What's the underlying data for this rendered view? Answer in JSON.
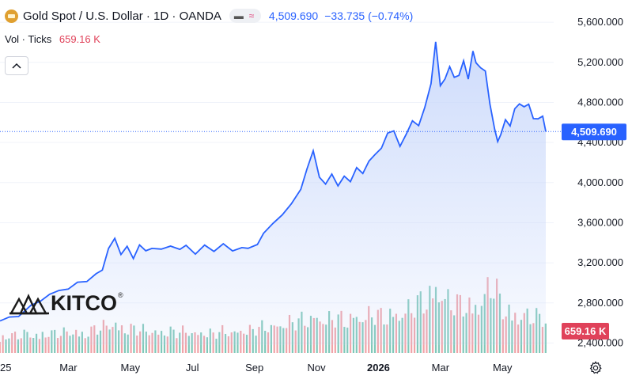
{
  "header": {
    "symbol_icon": "gold-bar-icon",
    "title": "Gold Spot / U.S. Dollar · 1D · OANDA",
    "price": "4,509.690",
    "change": "−33.735 (−0.74%)"
  },
  "volume": {
    "label": "Vol · Ticks",
    "value": "659.16 K"
  },
  "logo": {
    "text": "KITCO",
    "mark": "®"
  },
  "colors": {
    "line": "#2962ff",
    "fill": "#c9d8fb",
    "vol_up": "#7fc8b9",
    "vol_down": "#f0a3a8",
    "accent": "#e0425a"
  },
  "chart_data": {
    "type": "area",
    "price_axis": {
      "ticks": [
        "5,600.000",
        "5,200.000",
        "4,800.000",
        "4,400.000",
        "4,000.000",
        "3,600.000",
        "3,200.000",
        "2,800.000",
        "2,400.000"
      ],
      "tick_values": [
        5600,
        5200,
        4800,
        4400,
        4000,
        3600,
        3200,
        2800,
        2400
      ],
      "range": [
        2380,
        5680
      ]
    },
    "time_axis": {
      "labels": [
        "25",
        "Mar",
        "May",
        "Jul",
        "Sep",
        "Nov",
        "2026",
        "Mar",
        "May"
      ],
      "bold": [
        false,
        false,
        false,
        false,
        false,
        false,
        true,
        false,
        false
      ],
      "label_months": [
        0,
        2,
        4,
        6,
        8,
        10,
        12,
        14,
        16
      ],
      "range_months": [
        0,
        17.6
      ]
    },
    "last_price": 4509.69,
    "last_price_label": "4,509.690",
    "volume_label": "659.16 K",
    "price_series": [
      [
        0,
        2620
      ],
      [
        0.3,
        2650
      ],
      [
        0.6,
        2680
      ],
      [
        1.0,
        2760
      ],
      [
        1.3,
        2830
      ],
      [
        1.6,
        2880
      ],
      [
        1.9,
        2920
      ],
      [
        2.2,
        2950
      ],
      [
        2.5,
        2990
      ],
      [
        2.8,
        3030
      ],
      [
        3.1,
        3080
      ],
      [
        3.3,
        3130
      ],
      [
        3.5,
        3350
      ],
      [
        3.7,
        3430
      ],
      [
        3.9,
        3300
      ],
      [
        4.1,
        3350
      ],
      [
        4.3,
        3250
      ],
      [
        4.5,
        3380
      ],
      [
        4.7,
        3310
      ],
      [
        4.9,
        3360
      ],
      [
        5.2,
        3320
      ],
      [
        5.5,
        3380
      ],
      [
        5.8,
        3330
      ],
      [
        6.0,
        3370
      ],
      [
        6.3,
        3300
      ],
      [
        6.6,
        3360
      ],
      [
        6.9,
        3330
      ],
      [
        7.2,
        3380
      ],
      [
        7.5,
        3320
      ],
      [
        7.8,
        3360
      ],
      [
        8.0,
        3330
      ],
      [
        8.3,
        3400
      ],
      [
        8.5,
        3480
      ],
      [
        8.8,
        3600
      ],
      [
        9.1,
        3680
      ],
      [
        9.4,
        3780
      ],
      [
        9.7,
        3950
      ],
      [
        9.9,
        4120
      ],
      [
        10.1,
        4330
      ],
      [
        10.3,
        4050
      ],
      [
        10.5,
        3980
      ],
      [
        10.7,
        4100
      ],
      [
        10.9,
        3950
      ],
      [
        11.1,
        4080
      ],
      [
        11.3,
        4000
      ],
      [
        11.5,
        4150
      ],
      [
        11.7,
        4100
      ],
      [
        11.9,
        4200
      ],
      [
        12.1,
        4300
      ],
      [
        12.3,
        4330
      ],
      [
        12.5,
        4500
      ],
      [
        12.7,
        4520
      ],
      [
        12.9,
        4350
      ],
      [
        13.1,
        4500
      ],
      [
        13.3,
        4600
      ],
      [
        13.5,
        4580
      ],
      [
        13.7,
        4750
      ],
      [
        13.9,
        4980
      ],
      [
        14.05,
        5420
      ],
      [
        14.2,
        4950
      ],
      [
        14.35,
        5050
      ],
      [
        14.5,
        5150
      ],
      [
        14.65,
        5050
      ],
      [
        14.8,
        5080
      ],
      [
        14.95,
        5200
      ],
      [
        15.1,
        5050
      ],
      [
        15.25,
        5300
      ],
      [
        15.35,
        5200
      ],
      [
        15.5,
        5150
      ],
      [
        15.65,
        5100
      ],
      [
        15.8,
        4800
      ],
      [
        15.95,
        4520
      ],
      [
        16.05,
        4420
      ],
      [
        16.15,
        4480
      ],
      [
        16.3,
        4620
      ],
      [
        16.45,
        4580
      ],
      [
        16.6,
        4720
      ],
      [
        16.75,
        4800
      ],
      [
        16.9,
        4750
      ],
      [
        17.05,
        4780
      ],
      [
        17.2,
        4650
      ],
      [
        17.35,
        4620
      ],
      [
        17.5,
        4680
      ],
      [
        17.6,
        4509.69
      ]
    ],
    "volume_series": [
      [
        0,
        0.22
      ],
      [
        0.3,
        0.26
      ],
      [
        0.6,
        0.24
      ],
      [
        0.9,
        0.28
      ],
      [
        1.2,
        0.25
      ],
      [
        1.5,
        0.3
      ],
      [
        1.8,
        0.27
      ],
      [
        2.1,
        0.29
      ],
      [
        2.4,
        0.31
      ],
      [
        2.7,
        0.28
      ],
      [
        3.0,
        0.33
      ],
      [
        3.3,
        0.36
      ],
      [
        3.6,
        0.42
      ],
      [
        3.9,
        0.38
      ],
      [
        4.2,
        0.35
      ],
      [
        4.5,
        0.33
      ],
      [
        4.8,
        0.31
      ],
      [
        5.1,
        0.3
      ],
      [
        5.4,
        0.32
      ],
      [
        5.7,
        0.29
      ],
      [
        6.0,
        0.31
      ],
      [
        6.3,
        0.28
      ],
      [
        6.6,
        0.3
      ],
      [
        6.9,
        0.27
      ],
      [
        7.2,
        0.31
      ],
      [
        7.5,
        0.29
      ],
      [
        7.8,
        0.33
      ],
      [
        8.1,
        0.32
      ],
      [
        8.4,
        0.36
      ],
      [
        8.7,
        0.38
      ],
      [
        9.0,
        0.4
      ],
      [
        9.3,
        0.43
      ],
      [
        9.6,
        0.45
      ],
      [
        9.9,
        0.48
      ],
      [
        10.2,
        0.52
      ],
      [
        10.5,
        0.46
      ],
      [
        10.8,
        0.5
      ],
      [
        11.1,
        0.47
      ],
      [
        11.4,
        0.53
      ],
      [
        11.7,
        0.5
      ],
      [
        12.0,
        0.55
      ],
      [
        12.3,
        0.52
      ],
      [
        12.6,
        0.57
      ],
      [
        12.9,
        0.55
      ],
      [
        13.2,
        0.62
      ],
      [
        13.5,
        0.7
      ],
      [
        13.8,
        0.82
      ],
      [
        14.1,
        0.95
      ],
      [
        14.4,
        0.75
      ],
      [
        14.7,
        0.68
      ],
      [
        15.0,
        0.72
      ],
      [
        15.3,
        0.66
      ],
      [
        15.6,
        0.8
      ],
      [
        15.9,
        1.0
      ],
      [
        16.2,
        0.65
      ],
      [
        16.5,
        0.58
      ],
      [
        16.8,
        0.55
      ],
      [
        17.1,
        0.52
      ],
      [
        17.4,
        0.5
      ],
      [
        17.6,
        0.48
      ]
    ]
  }
}
